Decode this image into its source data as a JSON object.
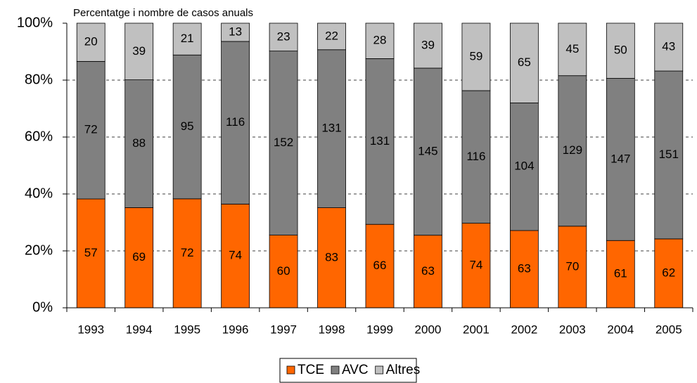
{
  "chart_data": {
    "type": "bar",
    "stacked": "percent",
    "title": "Percentatge i nombre de casos anuals",
    "categories": [
      "1993",
      "1994",
      "1995",
      "1996",
      "1997",
      "1998",
      "1999",
      "2000",
      "2001",
      "2002",
      "2003",
      "2004",
      "2005"
    ],
    "series": [
      {
        "name": "TCE",
        "color": "#ff6600",
        "values": [
          57,
          69,
          72,
          74,
          60,
          83,
          66,
          63,
          74,
          63,
          70,
          61,
          62
        ]
      },
      {
        "name": "AVC",
        "color": "#808080",
        "values": [
          72,
          88,
          95,
          116,
          152,
          131,
          131,
          145,
          116,
          104,
          129,
          147,
          151
        ]
      },
      {
        "name": "Altres",
        "color": "#c0c0c0",
        "values": [
          20,
          39,
          21,
          13,
          23,
          22,
          28,
          39,
          59,
          65,
          45,
          50,
          43
        ]
      }
    ],
    "ylim": [
      0,
      100
    ],
    "yticks": [
      {
        "value": 0,
        "label": "0%"
      },
      {
        "value": 20,
        "label": "20%"
      },
      {
        "value": 40,
        "label": "40%"
      },
      {
        "value": 60,
        "label": "60%"
      },
      {
        "value": 80,
        "label": "80%"
      },
      {
        "value": 100,
        "label": "100%"
      }
    ],
    "grid": true,
    "legend": "bottom"
  }
}
